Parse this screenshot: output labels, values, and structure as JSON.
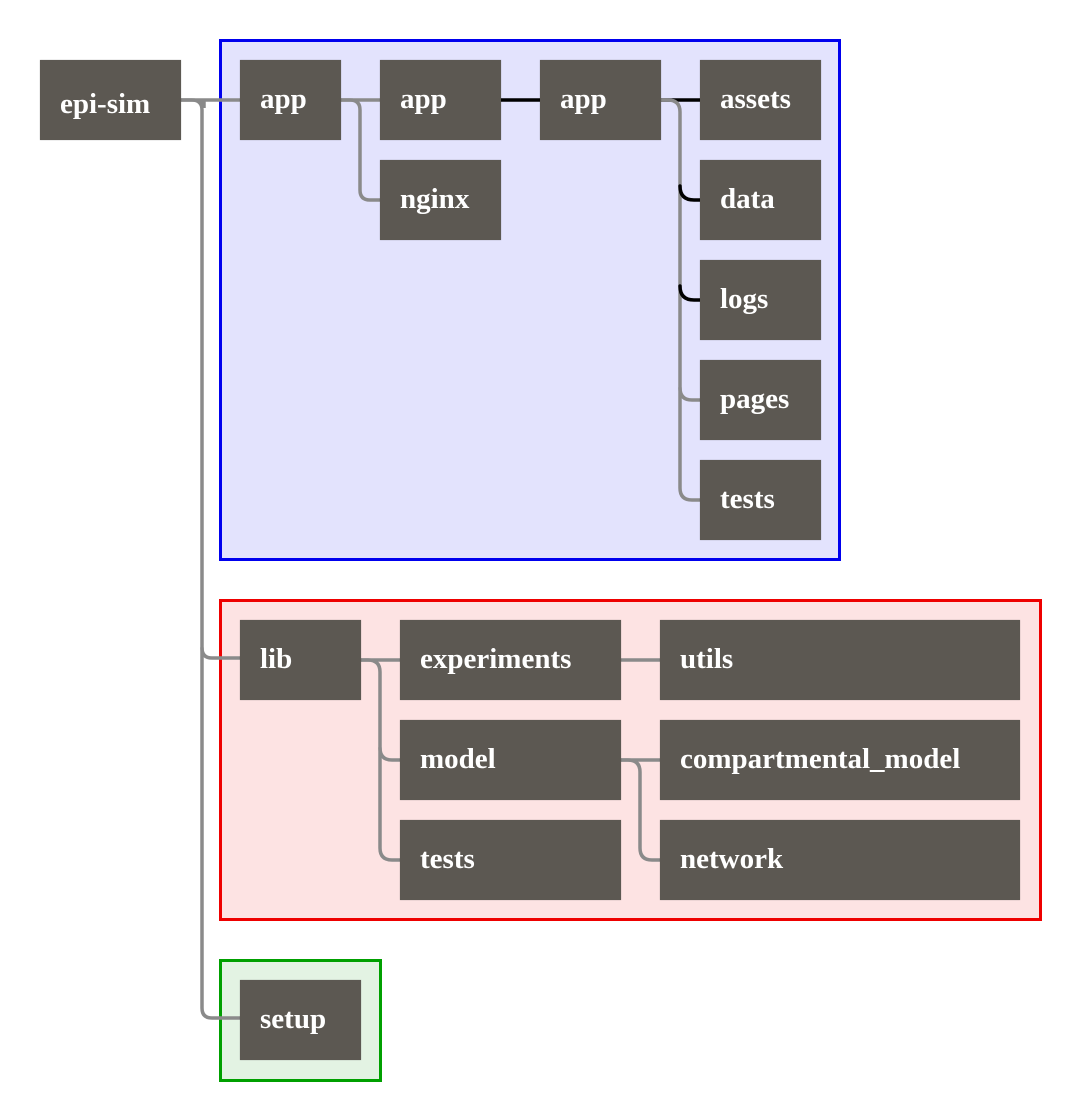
{
  "colors": {
    "node_fill": "#5c5852",
    "node_text": "#ffffff",
    "link_default": "#8a8a8a",
    "link_highlight": "#000000",
    "group_app_border": "#0000ee",
    "group_app_fill": "#e3e3fd",
    "group_lib_border": "#ee0000",
    "group_lib_fill": "#fde3e3",
    "group_setup_border": "#00a000",
    "group_setup_fill": "#e3f3e3"
  },
  "tree": {
    "root": {
      "label": "epi-sim"
    },
    "app_group": {
      "app1": {
        "label": "app"
      },
      "app2": {
        "label": "app"
      },
      "nginx": {
        "label": "nginx"
      },
      "app3": {
        "label": "app"
      },
      "assets": {
        "label": "assets"
      },
      "data": {
        "label": "data"
      },
      "logs": {
        "label": "logs"
      },
      "pages": {
        "label": "pages"
      },
      "tests": {
        "label": "tests"
      }
    },
    "lib_group": {
      "lib": {
        "label": "lib"
      },
      "experiments": {
        "label": "experiments"
      },
      "utils": {
        "label": "utils"
      },
      "model": {
        "label": "model"
      },
      "compartmental_model": {
        "label": "compartmental_model"
      },
      "network": {
        "label": "network"
      },
      "tests": {
        "label": "tests"
      }
    },
    "setup_group": {
      "setup": {
        "label": "setup"
      }
    }
  }
}
